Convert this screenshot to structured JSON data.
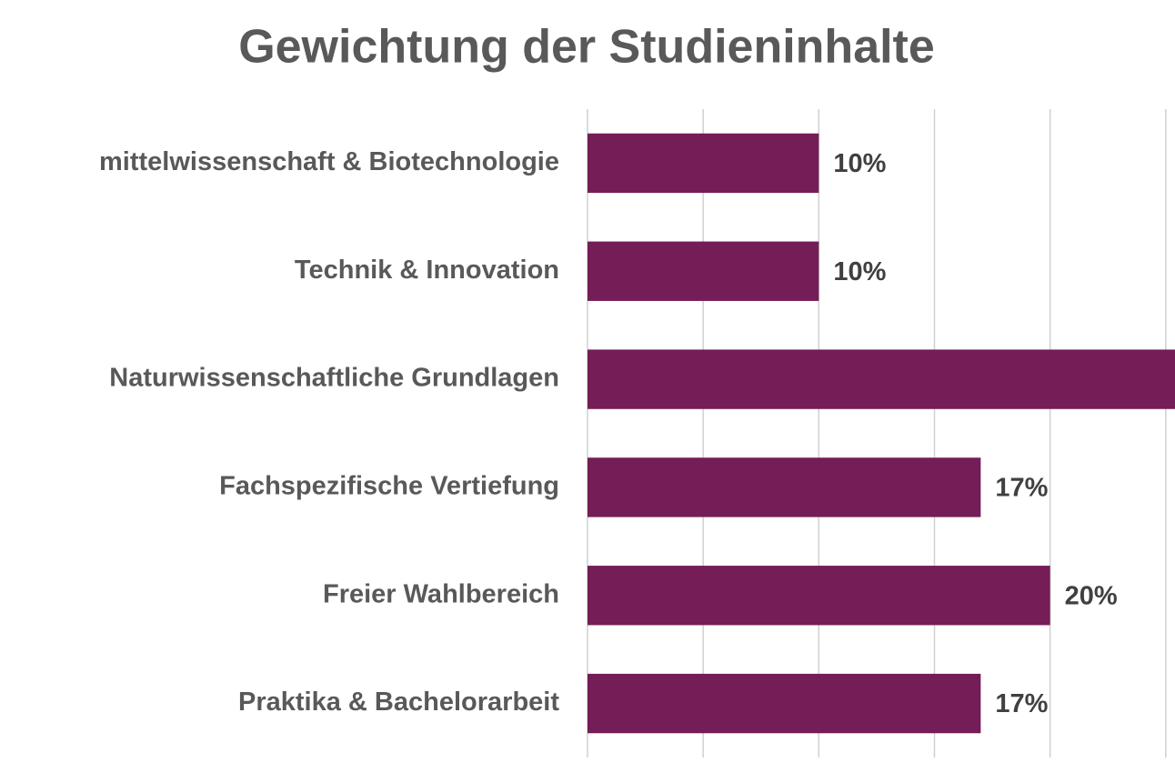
{
  "chart_data": {
    "type": "hbar",
    "title": "Gewichtung der Studieninhalte",
    "categories": [
      "mittelwissenschaft & Biotechnologie",
      "Technik & Innovation",
      "Naturwissenschaftliche Grundlagen",
      "Fachspezifische Vertiefung",
      "Freier Wahlbereich",
      "Praktika & Bachelorarbeit"
    ],
    "values": [
      10,
      10,
      26,
      17,
      20,
      17
    ],
    "value_labels": [
      "10%",
      "10%",
      null,
      "17%",
      "20%",
      "17%"
    ],
    "color": "#741d57",
    "xlim": [
      0,
      25.4
    ],
    "xticks": [
      0,
      5,
      10,
      15,
      20,
      25
    ],
    "grid": true
  }
}
